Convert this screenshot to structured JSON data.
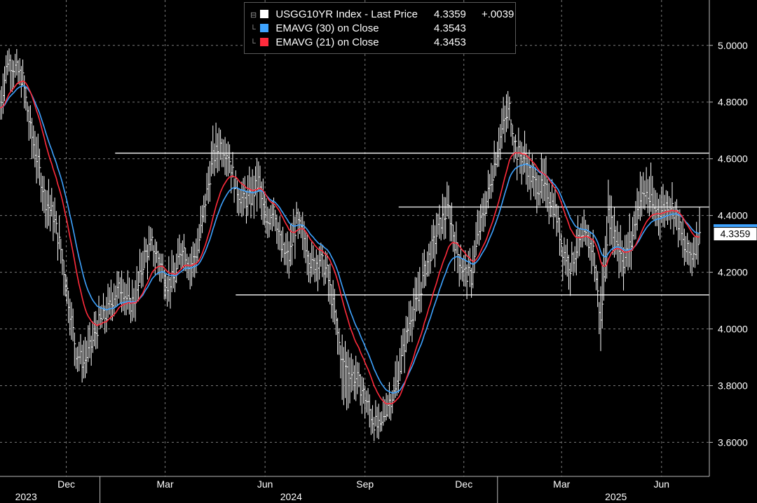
{
  "chart_data": {
    "type": "line",
    "title": "USGG10YR Index",
    "legend_placement": "top-center",
    "grid": true,
    "ylim": [
      3.48,
      5.16
    ],
    "xlim": [
      "2023-10-01",
      "2025-07-15"
    ],
    "y_ticks": [
      "5.0000",
      "4.8000",
      "4.6000",
      "4.4000",
      "4.2000",
      "4.0000",
      "3.8000",
      "3.6000"
    ],
    "y_tick_values": [
      5.0,
      4.8,
      4.6,
      4.4,
      4.2,
      4.0,
      3.8,
      3.6
    ],
    "x_ticks": [
      {
        "label": "Dec",
        "date": "2023-12-01"
      },
      {
        "label": "Mar",
        "date": "2024-03-01"
      },
      {
        "label": "Jun",
        "date": "2024-06-01"
      },
      {
        "label": "Sep",
        "date": "2024-09-01"
      },
      {
        "label": "Dec",
        "date": "2024-12-01"
      },
      {
        "label": "Mar",
        "date": "2025-03-01"
      },
      {
        "label": "Jun",
        "date": "2025-06-01"
      }
    ],
    "year_labels": [
      {
        "label": "2023",
        "date": "2023-10-25"
      },
      {
        "label": "2024",
        "date": "2024-06-25"
      },
      {
        "label": "2025",
        "date": "2025-04-20"
      }
    ],
    "year_separators": [
      "2024-01-01",
      "2025-01-01"
    ],
    "price_series": {
      "name": "USGG10YR Index - Last Price",
      "color": "#ffffff",
      "dates": [
        "2023-10-01",
        "2023-10-08",
        "2023-10-15",
        "2023-10-22",
        "2023-10-29",
        "2023-11-05",
        "2023-11-12",
        "2023-11-19",
        "2023-11-26",
        "2023-12-03",
        "2023-12-10",
        "2023-12-17",
        "2023-12-24",
        "2023-12-31",
        "2024-01-07",
        "2024-01-14",
        "2024-01-21",
        "2024-01-28",
        "2024-02-04",
        "2024-02-11",
        "2024-02-18",
        "2024-02-25",
        "2024-03-03",
        "2024-03-10",
        "2024-03-17",
        "2024-03-24",
        "2024-03-31",
        "2024-04-07",
        "2024-04-14",
        "2024-04-21",
        "2024-04-28",
        "2024-05-05",
        "2024-05-12",
        "2024-05-19",
        "2024-05-26",
        "2024-06-02",
        "2024-06-09",
        "2024-06-16",
        "2024-06-23",
        "2024-06-30",
        "2024-07-07",
        "2024-07-14",
        "2024-07-21",
        "2024-07-28",
        "2024-08-04",
        "2024-08-11",
        "2024-08-18",
        "2024-08-25",
        "2024-09-01",
        "2024-09-08",
        "2024-09-15",
        "2024-09-22",
        "2024-09-29",
        "2024-10-06",
        "2024-10-13",
        "2024-10-20",
        "2024-10-27",
        "2024-11-03",
        "2024-11-10",
        "2024-11-17",
        "2024-11-24",
        "2024-12-01",
        "2024-12-08",
        "2024-12-15",
        "2024-12-22",
        "2024-12-29",
        "2025-01-05",
        "2025-01-12",
        "2025-01-19",
        "2025-01-26",
        "2025-02-02",
        "2025-02-09",
        "2025-02-16",
        "2025-02-23",
        "2025-03-02",
        "2025-03-09",
        "2025-03-16",
        "2025-03-23",
        "2025-03-30",
        "2025-04-06",
        "2025-04-13",
        "2025-04-20",
        "2025-04-27",
        "2025-05-04",
        "2025-05-11",
        "2025-05-18",
        "2025-05-25",
        "2025-06-01",
        "2025-06-08",
        "2025-06-15",
        "2025-06-22",
        "2025-06-29",
        "2025-07-06"
      ],
      "values": [
        4.78,
        4.95,
        4.92,
        4.88,
        4.7,
        4.58,
        4.45,
        4.4,
        4.28,
        4.1,
        3.92,
        3.88,
        3.94,
        4.02,
        4.05,
        4.12,
        4.15,
        4.08,
        4.12,
        4.26,
        4.3,
        4.24,
        4.16,
        4.18,
        4.3,
        4.22,
        4.28,
        4.45,
        4.6,
        4.65,
        4.62,
        4.5,
        4.45,
        4.46,
        4.52,
        4.36,
        4.44,
        4.28,
        4.25,
        4.38,
        4.32,
        4.22,
        4.25,
        4.2,
        4.05,
        3.88,
        3.85,
        3.82,
        3.76,
        3.68,
        3.64,
        3.74,
        3.78,
        3.92,
        4.05,
        4.1,
        4.22,
        4.3,
        4.38,
        4.42,
        4.28,
        4.2,
        4.18,
        4.35,
        4.45,
        4.58,
        4.7,
        4.78,
        4.62,
        4.6,
        4.52,
        4.5,
        4.48,
        4.42,
        4.28,
        4.22,
        4.3,
        4.32,
        4.28,
        4.02,
        4.4,
        4.32,
        4.24,
        4.3,
        4.45,
        4.48,
        4.42,
        4.42,
        4.45,
        4.4,
        4.28,
        4.26,
        4.34
      ],
      "highs": [
        4.88,
        5.02,
        5.0,
        4.96,
        4.82,
        4.68,
        4.58,
        4.5,
        4.38,
        4.2,
        4.02,
        3.98,
        4.04,
        4.12,
        4.16,
        4.22,
        4.26,
        4.18,
        4.24,
        4.34,
        4.36,
        4.32,
        4.26,
        4.28,
        4.38,
        4.32,
        4.38,
        4.56,
        4.72,
        4.74,
        4.7,
        4.58,
        4.56,
        4.6,
        4.64,
        4.46,
        4.52,
        4.38,
        4.35,
        4.46,
        4.42,
        4.32,
        4.34,
        4.3,
        4.15,
        4.0,
        3.95,
        3.92,
        3.84,
        3.78,
        3.74,
        3.82,
        3.9,
        4.02,
        4.15,
        4.22,
        4.32,
        4.4,
        4.48,
        4.52,
        4.38,
        4.3,
        4.3,
        4.45,
        4.55,
        4.68,
        4.8,
        4.82,
        4.72,
        4.7,
        4.62,
        4.64,
        4.58,
        4.52,
        4.38,
        4.32,
        4.4,
        4.42,
        4.38,
        4.2,
        4.54,
        4.46,
        4.36,
        4.42,
        4.58,
        4.62,
        4.54,
        4.52,
        4.54,
        4.5,
        4.38,
        4.36,
        4.43
      ],
      "lows": [
        4.68,
        4.86,
        4.82,
        4.78,
        4.6,
        4.48,
        4.35,
        4.3,
        4.18,
        4.0,
        3.84,
        3.8,
        3.86,
        3.94,
        3.96,
        4.02,
        4.06,
        3.98,
        4.04,
        4.16,
        4.2,
        4.14,
        4.06,
        4.08,
        4.2,
        4.12,
        4.18,
        4.34,
        4.5,
        4.56,
        4.52,
        4.4,
        4.35,
        4.36,
        4.42,
        4.26,
        4.34,
        4.18,
        4.15,
        4.28,
        4.22,
        4.12,
        4.15,
        4.1,
        3.95,
        3.68,
        3.74,
        3.72,
        3.66,
        3.6,
        3.6,
        3.66,
        3.7,
        3.82,
        3.95,
        4.0,
        4.12,
        4.2,
        4.28,
        4.32,
        4.18,
        4.12,
        4.1,
        4.25,
        4.35,
        4.48,
        4.6,
        4.68,
        4.52,
        4.5,
        4.42,
        4.4,
        4.38,
        4.32,
        4.18,
        4.12,
        4.2,
        4.22,
        4.18,
        3.86,
        4.28,
        4.2,
        4.12,
        4.2,
        4.35,
        4.38,
        4.32,
        4.32,
        4.36,
        4.3,
        4.18,
        4.16,
        4.3
      ]
    },
    "series": [
      {
        "name": "EMAVG (30)  on Close",
        "color": "#3ea3ff",
        "period": 30
      },
      {
        "name": "EMAVG (21)  on Close",
        "color": "#ff2b3c",
        "period": 21
      }
    ],
    "horizontal_lines": [
      {
        "value": 4.62,
        "from": "2024-01-15",
        "to": "2025-07-20"
      },
      {
        "value": 4.43,
        "from": "2024-10-02",
        "to": "2025-07-20"
      },
      {
        "value": 4.12,
        "from": "2024-05-05",
        "to": "2025-07-20"
      }
    ],
    "last_value_label": "4.3359",
    "last_value_marker_value": 4.3543
  },
  "legend": {
    "rows": [
      {
        "tree": "⊟",
        "label": "USGG10YR Index - Last Price",
        "value": "4.3359",
        "change": "+.0039",
        "color": "#ffffff"
      },
      {
        "tree": "└",
        "label": "EMAVG (30)  on Close",
        "value": "4.3543",
        "change": "",
        "color": "#3ea3ff"
      },
      {
        "tree": "└",
        "label": "EMAVG (21)  on Close",
        "value": "4.3453",
        "change": "",
        "color": "#ff2b3c"
      }
    ]
  }
}
